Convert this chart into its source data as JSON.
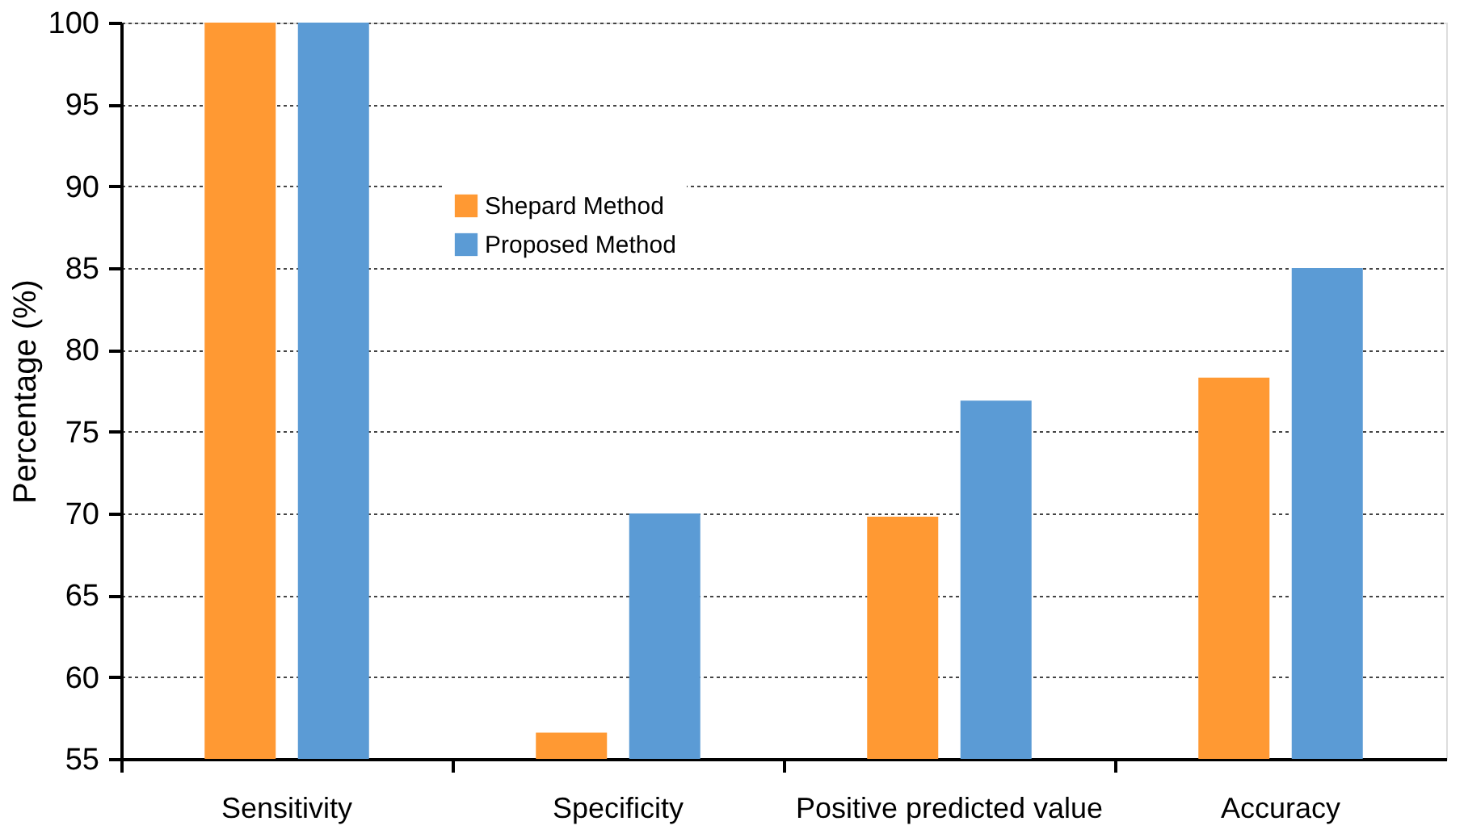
{
  "chart_data": {
    "type": "bar",
    "ylabel": "Percentage (%)",
    "categories": [
      "Sensitivity",
      "Specificity",
      "Positive predicted value",
      "Accuracy"
    ],
    "series": [
      {
        "name": "Shepard Method",
        "color": "#ff9933",
        "values": [
          100,
          56.6,
          69.8,
          78.3
        ]
      },
      {
        "name": "Proposed Method",
        "color": "#5b9bd5",
        "values": [
          100,
          70,
          76.9,
          85
        ]
      }
    ],
    "ylim": [
      55,
      100
    ],
    "yticks": [
      55,
      60,
      65,
      70,
      75,
      80,
      85,
      90,
      95,
      100
    ],
    "grid": "y",
    "legend": "top"
  }
}
